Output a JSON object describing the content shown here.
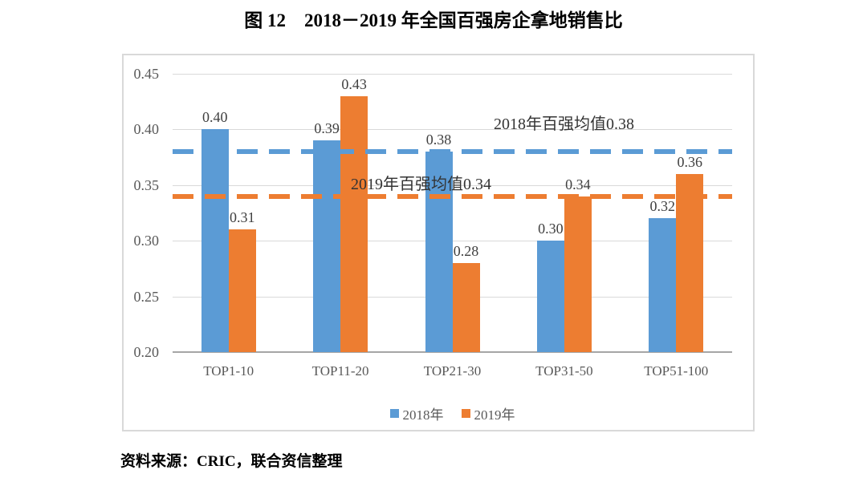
{
  "page": {
    "title": "图 12　2018－2019 年全国百强房企拿地销售比",
    "source_note": "资料来源：CRIC，联合资信整理"
  },
  "chart_data": {
    "type": "bar",
    "title": "图 12　2018－2019 年全国百强房企拿地销售比",
    "categories": [
      "TOP1-10",
      "TOP11-20",
      "TOP21-30",
      "TOP31-50",
      "TOP51-100"
    ],
    "series": [
      {
        "name": "2018年",
        "color": "#5B9BD5",
        "values": [
          0.4,
          0.39,
          0.38,
          0.3,
          0.32
        ],
        "value_labels": [
          "0.40",
          "0.39",
          "0.38",
          "0.30",
          "0.32"
        ]
      },
      {
        "name": "2019年",
        "color": "#ED7D31",
        "values": [
          0.31,
          0.43,
          0.28,
          0.34,
          0.36
        ],
        "value_labels": [
          "0.31",
          "0.43",
          "0.28",
          "0.34",
          "0.36"
        ]
      }
    ],
    "reference_lines": [
      {
        "label": "2018年百强均值0.38",
        "value": 0.38,
        "color": "#5B9BD5",
        "style": "dashed"
      },
      {
        "label": "2019年百强均值0.34",
        "value": 0.34,
        "color": "#ED7D31",
        "style": "dashed"
      }
    ],
    "ylim": [
      0.2,
      0.45
    ],
    "ytick_step": 0.05,
    "ytick_labels": [
      "0.45",
      "0.40",
      "0.35",
      "0.30",
      "0.25",
      "0.20"
    ],
    "xlabel": "",
    "ylabel": "",
    "grid": true,
    "legend_position": "bottom"
  },
  "colors": {
    "series_2018": "#5B9BD5",
    "series_2019": "#ED7D31",
    "gridline": "#D9D9D9",
    "axis_line": "#A6A6A6",
    "tick_text": "#595959",
    "value_label_text": "#404040"
  }
}
